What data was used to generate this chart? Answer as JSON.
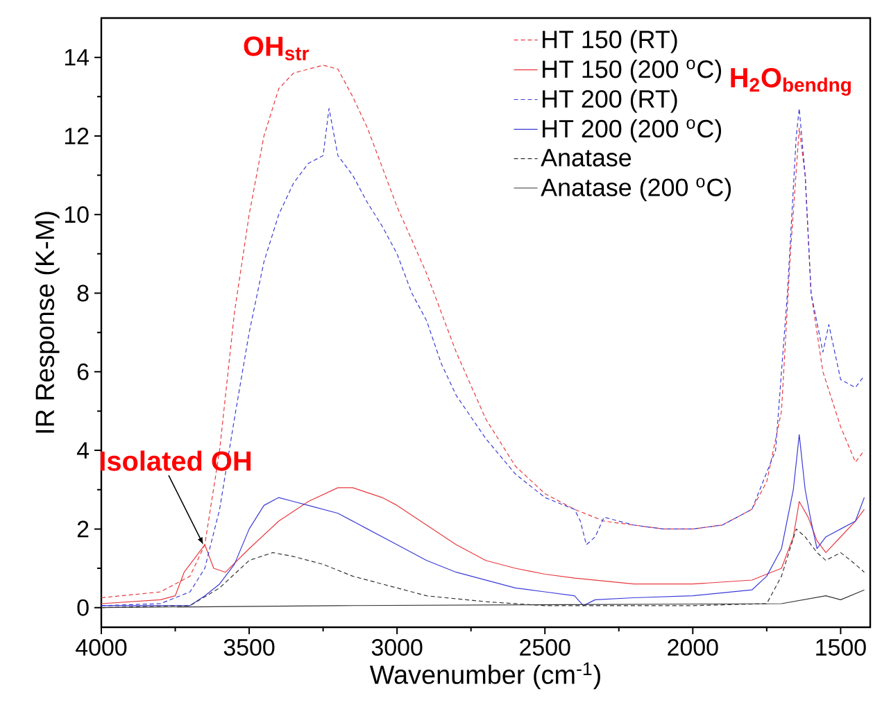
{
  "chart_data": {
    "type": "line",
    "xlabel": "Wavenumber (cm$^{-1}$)",
    "ylabel": "IR Response (K-M)",
    "xlim": [
      4000,
      1400
    ],
    "ylim": [
      -0.5,
      15
    ],
    "xticks": [
      4000,
      3500,
      3000,
      2500,
      2000,
      1500
    ],
    "yticks": [
      0,
      2,
      4,
      6,
      8,
      10,
      12,
      14
    ],
    "legend": "top right",
    "marker": "none",
    "annotations": [
      {
        "text": "OH$_{str}$",
        "x": 3380,
        "y": 13.6
      },
      {
        "text": "H$_{2}$O$_{bendng}$",
        "x": 1640,
        "y": 12.7
      },
      {
        "text": "Isolated OH",
        "x": 3655,
        "y": 1.6
      }
    ],
    "series": [
      {
        "name": "HT 150 (RT)",
        "color": "#e8383d",
        "line_style": "dashed",
        "x": [
          4000,
          3800,
          3700,
          3650,
          3600,
          3550,
          3500,
          3450,
          3400,
          3350,
          3300,
          3250,
          3200,
          3150,
          3100,
          3050,
          3000,
          2900,
          2800,
          2700,
          2600,
          2500,
          2400,
          2300,
          2200,
          2100,
          2000,
          1900,
          1800,
          1750,
          1700,
          1670,
          1640,
          1620,
          1600,
          1560,
          1500,
          1450,
          1420
        ],
        "values": [
          0.25,
          0.4,
          0.8,
          1.6,
          4,
          7.5,
          10,
          12,
          13.2,
          13.6,
          13.7,
          13.8,
          13.7,
          13,
          12.2,
          11.2,
          10.2,
          8.5,
          6.5,
          4.8,
          3.6,
          2.9,
          2.5,
          2.2,
          2.1,
          2,
          2,
          2.1,
          2.5,
          3.2,
          5,
          9,
          12.2,
          11,
          8,
          6,
          4.6,
          3.7,
          4
        ]
      },
      {
        "name": "HT 150 (200 $^{o}$C)",
        "color": "#e8383d",
        "line_style": "solid",
        "x": [
          4000,
          3800,
          3750,
          3720,
          3680,
          3650,
          3620,
          3580,
          3500,
          3400,
          3300,
          3200,
          3150,
          3050,
          3000,
          2900,
          2800,
          2700,
          2600,
          2500,
          2400,
          2200,
          2000,
          1800,
          1700,
          1660,
          1640,
          1610,
          1580,
          1550,
          1500,
          1450,
          1420
        ],
        "values": [
          0.1,
          0.2,
          0.3,
          0.9,
          1.3,
          1.6,
          1,
          0.9,
          1.5,
          2.2,
          2.7,
          3.05,
          3.05,
          2.8,
          2.6,
          2.1,
          1.6,
          1.2,
          1,
          0.85,
          0.75,
          0.6,
          0.6,
          0.7,
          1,
          1.8,
          2.7,
          2.3,
          1.7,
          1.4,
          1.8,
          2.2,
          2.5
        ]
      },
      {
        "name": "HT 200 (RT)",
        "color": "#3a3ad8",
        "line_style": "dashed",
        "x": [
          4000,
          3800,
          3700,
          3650,
          3600,
          3550,
          3500,
          3450,
          3400,
          3350,
          3300,
          3250,
          3230,
          3200,
          3150,
          3100,
          3050,
          3000,
          2950,
          2900,
          2850,
          2800,
          2700,
          2600,
          2500,
          2400,
          2380,
          2360,
          2330,
          2300,
          2200,
          2100,
          2000,
          1900,
          1800,
          1720,
          1680,
          1650,
          1640,
          1620,
          1600,
          1560,
          1540,
          1500,
          1450,
          1420
        ],
        "values": [
          0.05,
          0.1,
          0.4,
          1,
          2.5,
          4.8,
          7,
          8.8,
          10,
          10.8,
          11.3,
          11.5,
          12.7,
          11.5,
          11,
          10.3,
          9.7,
          9,
          8,
          7.3,
          6.2,
          5.4,
          4.3,
          3.4,
          2.8,
          2.5,
          2.2,
          1.6,
          1.8,
          2.3,
          2.1,
          2,
          2,
          2.1,
          2.5,
          4,
          8,
          12,
          12.7,
          11,
          8,
          6.5,
          7.2,
          5.8,
          5.6,
          5.9
        ]
      },
      {
        "name": "HT 200 (200 $^{o}$C)",
        "color": "#3a3ad8",
        "line_style": "solid",
        "x": [
          4000,
          3700,
          3650,
          3600,
          3550,
          3500,
          3450,
          3400,
          3350,
          3300,
          3200,
          3100,
          3000,
          2900,
          2800,
          2700,
          2600,
          2500,
          2400,
          2370,
          2330,
          2200,
          2000,
          1800,
          1750,
          1700,
          1660,
          1640,
          1620,
          1600,
          1580,
          1550,
          1500,
          1450,
          1420
        ],
        "values": [
          0.05,
          0.05,
          0.3,
          0.6,
          1.1,
          2,
          2.6,
          2.8,
          2.7,
          2.6,
          2.4,
          2,
          1.6,
          1.2,
          0.9,
          0.7,
          0.5,
          0.4,
          0.3,
          0.05,
          0.2,
          0.25,
          0.3,
          0.45,
          0.8,
          1.5,
          3,
          4.4,
          3,
          2.2,
          1.5,
          1.8,
          2,
          2.2,
          2.8
        ]
      },
      {
        "name": "Anatase",
        "color": "#333333",
        "line_style": "dashed",
        "x": [
          4000,
          3700,
          3600,
          3500,
          3420,
          3350,
          3250,
          3150,
          3000,
          2900,
          2700,
          2500,
          2000,
          1750,
          1700,
          1650,
          1620,
          1580,
          1550,
          1500,
          1450,
          1420
        ],
        "values": [
          0,
          0.05,
          0.5,
          1.2,
          1.4,
          1.3,
          1.1,
          0.8,
          0.5,
          0.3,
          0.15,
          0.05,
          0.05,
          0.1,
          0.8,
          2,
          1.8,
          1.4,
          1.2,
          1.4,
          1.1,
          0.9
        ]
      },
      {
        "name": "Anatase (200 $^{o}$C)",
        "color": "#333333",
        "line_style": "solid",
        "x": [
          4000,
          3200,
          1700,
          1550,
          1500,
          1420
        ],
        "values": [
          0,
          0.05,
          0.1,
          0.3,
          0.2,
          0.45
        ]
      }
    ]
  }
}
